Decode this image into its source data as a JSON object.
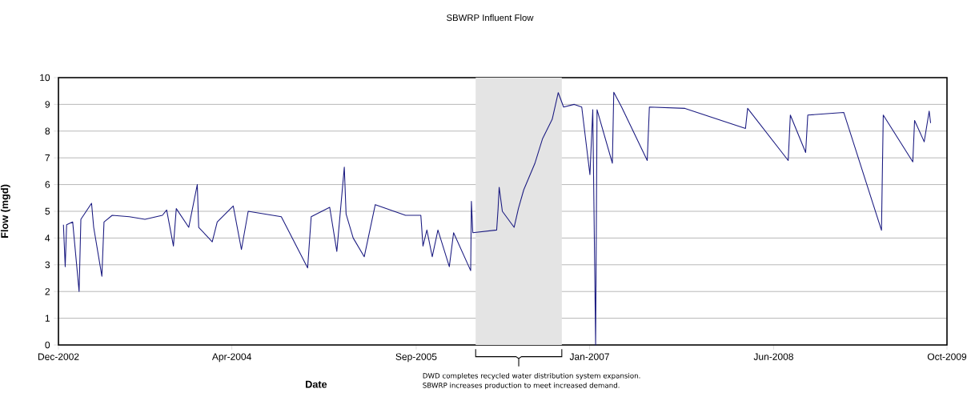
{
  "chart_data": {
    "type": "line",
    "title": "SBWRP Influent Flow",
    "xlabel": "Date",
    "ylabel": "Flow (mgd)",
    "xlim": [
      "2002-12-01",
      "2009-10-01"
    ],
    "xticks": [
      {
        "value": "2002-12-01",
        "label": "Dec-2002"
      },
      {
        "value": "2004-04-01",
        "label": "Apr-2004"
      },
      {
        "value": "2005-09-01",
        "label": "Sep-2005"
      },
      {
        "value": "2007-01-01",
        "label": "Jan-2007"
      },
      {
        "value": "2008-06-01",
        "label": "Jun-2008"
      },
      {
        "value": "2009-10-01",
        "label": "Oct-2009"
      }
    ],
    "ylim": [
      0,
      10
    ],
    "yticks": [
      0,
      1,
      2,
      3,
      4,
      5,
      6,
      7,
      8,
      9,
      10
    ],
    "grid": "y",
    "marker": "none",
    "line_style": "solid",
    "bands": [
      {
        "axis": "x",
        "from": "2006-02-15",
        "to": "2006-10-15",
        "color": "#e4e4e4"
      }
    ],
    "annotations": [
      "DWD completes recycled water distribution system expansion.",
      "SBWRP increases production to meet increased demand."
    ],
    "series": [
      {
        "color": "#1a1a80",
        "x": [
          "2002-12-15",
          "2002-12-20",
          "2002-12-24",
          "2003-01-10",
          "2003-01-28",
          "2003-02-02",
          "2003-03-04",
          "2003-03-10",
          "2003-04-02",
          "2003-04-08",
          "2003-05-01",
          "2003-06-18",
          "2003-08-01",
          "2003-09-19",
          "2003-10-01",
          "2003-10-20",
          "2003-10-28",
          "2003-12-02",
          "2003-12-26",
          "2003-12-30",
          "2004-02-06",
          "2004-02-20",
          "2004-04-05",
          "2004-04-28",
          "2004-05-17",
          "2004-08-18",
          "2004-10-31",
          "2004-11-10",
          "2005-01-01",
          "2005-01-21",
          "2005-02-11",
          "2005-02-16",
          "2005-03-08",
          "2005-04-08",
          "2005-05-09",
          "2005-08-02",
          "2005-09-14",
          "2005-09-20",
          "2005-10-01",
          "2005-10-16",
          "2005-11-01",
          "2005-12-03",
          "2005-12-15",
          "2006-02-01",
          "2006-02-03",
          "2006-02-07",
          "2006-04-15",
          "2006-04-19",
          "2006-04-22",
          "2006-05-01",
          "2006-06-03",
          "2006-06-15",
          "2006-06-30",
          "2006-07-31",
          "2006-08-22",
          "2006-09-18",
          "2006-10-05",
          "2006-10-20",
          "2006-11-19",
          "2006-12-10",
          "2007-01-02",
          "2007-01-10",
          "2007-01-18",
          "2007-01-22",
          "2007-03-06",
          "2007-03-10",
          "2007-04-01",
          "2007-06-12",
          "2007-06-18",
          "2007-09-26",
          "2008-03-14",
          "2008-03-20",
          "2008-07-12",
          "2008-07-18",
          "2008-08-30",
          "2008-09-05",
          "2008-12-15",
          "2009-03-31",
          "2009-04-05",
          "2009-06-27",
          "2009-07-02",
          "2009-07-29",
          "2009-08-12",
          "2009-08-16"
        ],
        "values": [
          4.5,
          2.93,
          4.5,
          4.6,
          2.0,
          4.7,
          5.3,
          4.4,
          2.57,
          4.6,
          4.85,
          4.8,
          4.7,
          4.85,
          5.05,
          3.7,
          5.1,
          4.4,
          6.0,
          4.4,
          3.86,
          4.6,
          5.2,
          3.57,
          5.0,
          4.8,
          2.88,
          4.8,
          5.15,
          3.5,
          6.65,
          4.9,
          4.0,
          3.3,
          5.25,
          4.85,
          4.85,
          3.7,
          4.3,
          3.3,
          4.3,
          2.93,
          4.2,
          2.78,
          5.37,
          4.2,
          4.3,
          5.1,
          5.9,
          5.0,
          4.4,
          5.1,
          5.8,
          6.78,
          7.72,
          8.44,
          9.44,
          8.9,
          9.0,
          8.9,
          6.37,
          8.8,
          0,
          8.8,
          6.8,
          9.45,
          8.9,
          6.9,
          8.9,
          8.85,
          8.1,
          8.85,
          6.9,
          8.6,
          7.2,
          8.6,
          8.7,
          4.29,
          8.6,
          6.85,
          8.4,
          7.6,
          8.75,
          8.3
        ]
      }
    ]
  }
}
